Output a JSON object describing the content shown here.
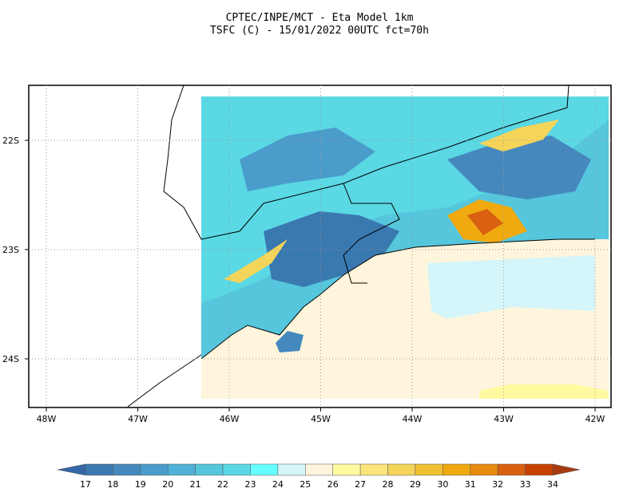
{
  "header": {
    "title": "CPTEC/INPE/MCT -  Eta Model 1km",
    "subtitle": "TSFC (C) - 15/01/2022 00UTC fct=70h"
  },
  "map": {
    "lon_ticks": [
      "48W",
      "47W",
      "46W",
      "45W",
      "44W",
      "43W",
      "42W"
    ],
    "lat_ticks": [
      "22S",
      "23S",
      "24S"
    ]
  },
  "colorbar": {
    "labels": [
      "17",
      "18",
      "19",
      "20",
      "21",
      "22",
      "23",
      "24",
      "25",
      "26",
      "27",
      "28",
      "29",
      "30",
      "31",
      "32",
      "33",
      "34"
    ],
    "colors": [
      "#3467a8",
      "#3a78b0",
      "#4588be",
      "#4a9ccb",
      "#4fb1d6",
      "#55c6dc",
      "#5ad8e4",
      "#66ffff",
      "#d4f5fa",
      "#fff5dc",
      "#fffaa0",
      "#fbe57a",
      "#f5d45a",
      "#f0c030",
      "#f0aa10",
      "#e88a10",
      "#d86010",
      "#c84000",
      "#a83a10"
    ]
  }
}
